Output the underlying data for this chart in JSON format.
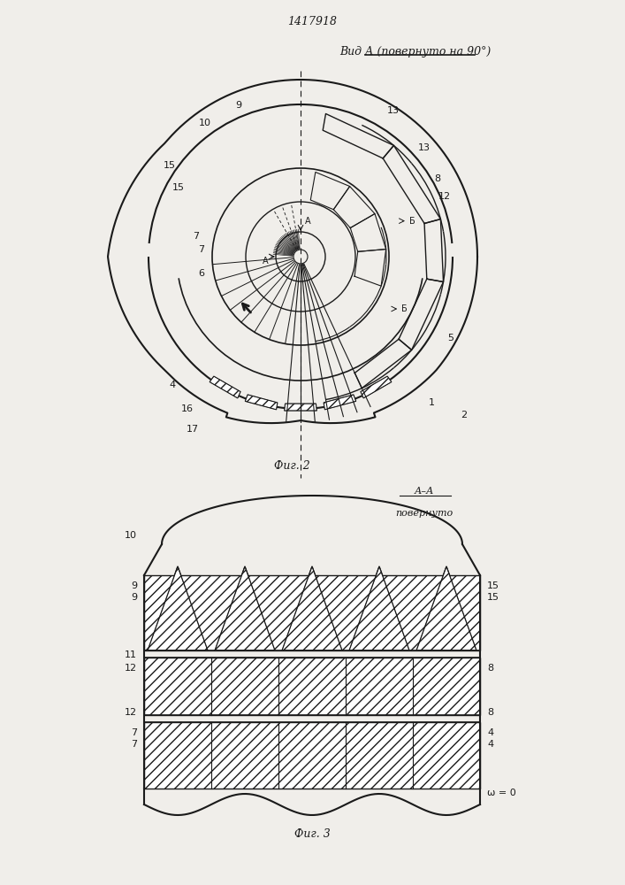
{
  "title": "1417918",
  "fig2_label": "Фиг. 2",
  "fig3_label": "Фиг. 3",
  "view_label": "Вид А (повернуто на 90°)",
  "section_label": "А–А\nповернуто",
  "bg_color": "#f0eeea",
  "line_color": "#1a1a1a"
}
